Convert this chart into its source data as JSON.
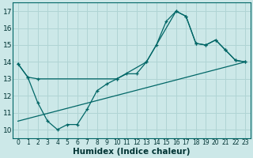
{
  "background_color": "#cce8e8",
  "grid_color": "#b0d4d4",
  "line_color": "#006666",
  "line1_x": [
    0,
    1,
    2,
    3,
    4,
    5,
    6,
    7,
    8,
    9,
    10,
    11,
    12,
    13,
    14,
    15,
    16,
    17,
    18,
    19,
    20,
    21,
    22,
    23
  ],
  "line1_y": [
    13.9,
    13.1,
    11.6,
    10.5,
    10.0,
    10.3,
    10.3,
    11.2,
    12.3,
    12.7,
    13.0,
    13.3,
    13.3,
    14.0,
    15.0,
    16.4,
    17.0,
    16.7,
    15.1,
    15.0,
    15.3,
    14.7,
    14.1,
    14.0
  ],
  "line2_x": [
    0,
    1,
    2,
    10,
    13,
    16,
    17,
    18,
    19,
    20,
    21,
    22,
    23
  ],
  "line2_y": [
    13.9,
    13.1,
    13.0,
    13.0,
    14.0,
    17.0,
    16.7,
    15.1,
    15.0,
    15.3,
    14.7,
    14.1,
    14.0
  ],
  "line3_x": [
    0,
    23
  ],
  "line3_y": [
    10.5,
    14.0
  ],
  "xlabel": "Humidex (Indice chaleur)",
  "xlim": [
    -0.5,
    23.5
  ],
  "ylim": [
    9.5,
    17.5
  ],
  "xticks": [
    0,
    1,
    2,
    3,
    4,
    5,
    6,
    7,
    8,
    9,
    10,
    11,
    12,
    13,
    14,
    15,
    16,
    17,
    18,
    19,
    20,
    21,
    22,
    23
  ],
  "yticks": [
    10,
    11,
    12,
    13,
    14,
    15,
    16,
    17
  ]
}
